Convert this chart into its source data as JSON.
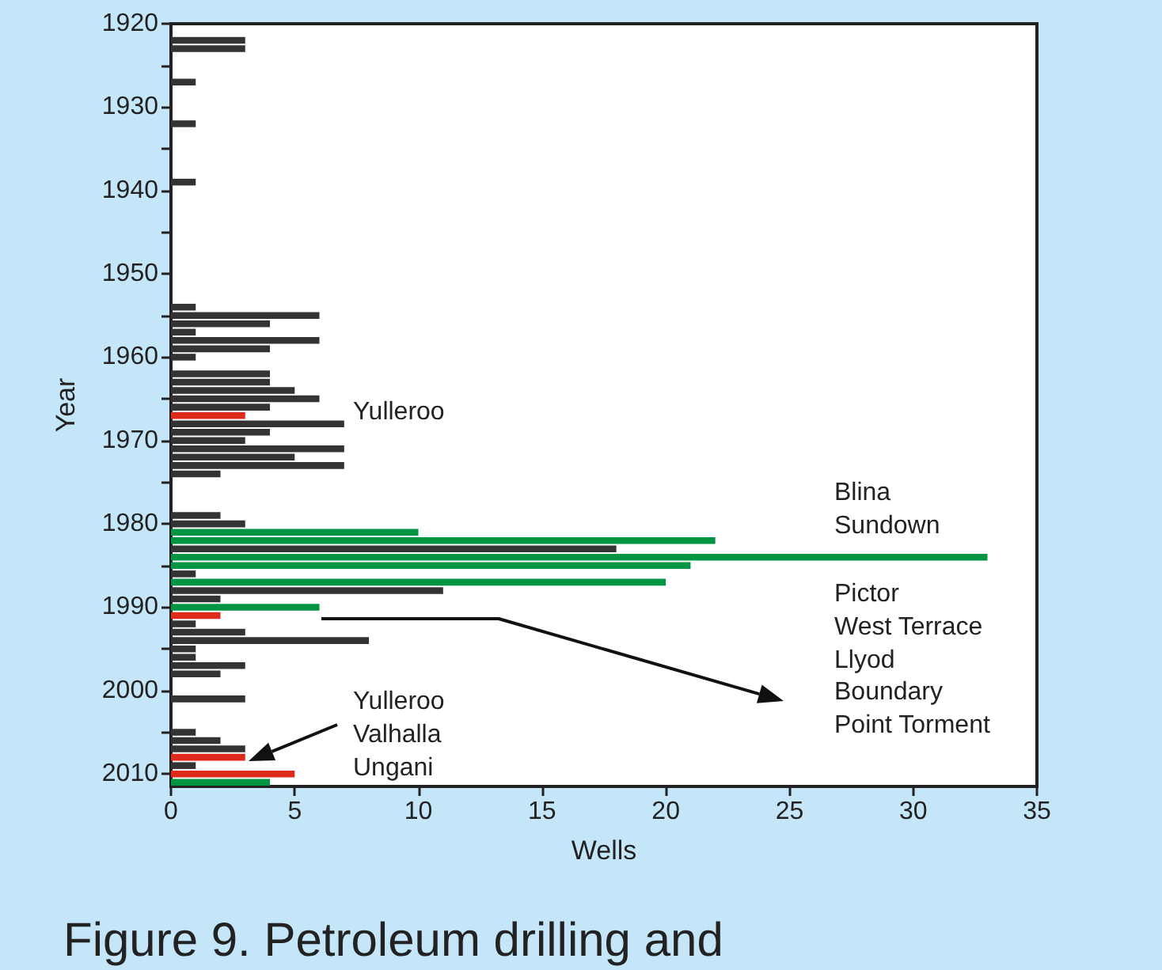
{
  "chart_data": {
    "type": "bar",
    "orientation": "horizontal",
    "xlabel": "Wells",
    "ylabel": "Year",
    "series": [
      {
        "color": "#333333",
        "x": [
          1922,
          1923,
          1927,
          1932,
          1939,
          1954,
          1955,
          1956,
          1957,
          1958,
          1959,
          1960,
          1962,
          1963,
          1964,
          1965,
          1966,
          1968,
          1969,
          1970,
          1971,
          1972,
          1973,
          1974,
          1979,
          1980,
          1983,
          1986,
          1988,
          1989,
          1992,
          1993,
          1994,
          1995,
          1996,
          1997,
          1998,
          2001,
          2005,
          2006,
          2007,
          2009
        ],
        "values": [
          3,
          3,
          1,
          1,
          1,
          1,
          6,
          4,
          1,
          6,
          4,
          1,
          4,
          4,
          5,
          6,
          4,
          7,
          4,
          3,
          7,
          5,
          7,
          2,
          2,
          3,
          18,
          1,
          11,
          2,
          1,
          3,
          8,
          1,
          1,
          3,
          2,
          3,
          1,
          2,
          3,
          1
        ]
      },
      {
        "color": "#009443",
        "x": [
          1981,
          1982,
          1984,
          1985,
          1987,
          1990,
          2011
        ],
        "values": [
          10,
          22,
          33,
          21,
          20,
          6,
          4
        ]
      },
      {
        "color": "#dd2a1b",
        "x": [
          1967,
          1991,
          2008,
          2010
        ],
        "values": [
          3,
          2,
          3,
          5
        ]
      }
    ],
    "xlim": [
      0,
      35
    ],
    "xticks": [
      0,
      5,
      10,
      15,
      20,
      25,
      30,
      35
    ],
    "ylim": [
      2011.5,
      1920
    ],
    "yticks": [
      1920,
      {
        "value": 1925,
        "label": null
      },
      1930,
      {
        "value": 1935,
        "label": null
      },
      1940,
      {
        "value": 1945,
        "label": null
      },
      1950,
      {
        "value": 1955,
        "label": null
      },
      1960,
      {
        "value": 1965,
        "label": null
      },
      1970,
      {
        "value": 1975,
        "label": null
      },
      1980,
      {
        "value": 1985,
        "label": null
      },
      1990,
      {
        "value": 1995,
        "label": null
      },
      2000,
      {
        "value": 2005,
        "label": null
      },
      2010
    ],
    "annotations": [
      "Yulleroo",
      "Blina\nSundown",
      "Pictor\nWest Terrace\nLlyod\nBoundary\nPoint Torment",
      "Yulleroo\nValhalla\nUngani",
      "Figure 9. Petroleum drilling and"
    ],
    "grid": false
  }
}
